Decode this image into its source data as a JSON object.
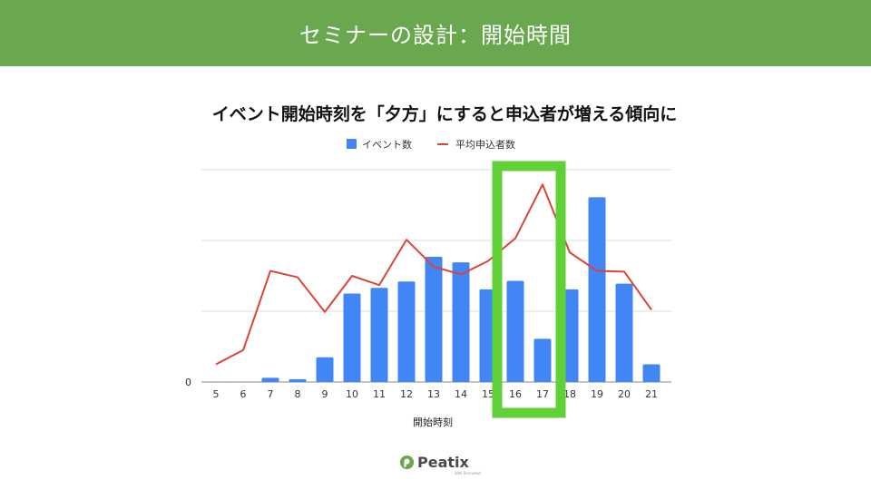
{
  "slide": {
    "title": "セミナーの設計：開始時間",
    "header_color": "#6aa84f"
  },
  "logo": {
    "wordmark": "Peatix",
    "tagline": "Well Recruited",
    "color": "#6aa84f"
  },
  "chart_data": {
    "type": "bar+line",
    "title": "イベント開始時刻を「夕方」にすると申込者が増える傾向に",
    "xlabel": "開始時刻",
    "categories": [
      "5",
      "6",
      "7",
      "8",
      "9",
      "10",
      "11",
      "12",
      "13",
      "14",
      "15",
      "16",
      "17",
      "18",
      "19",
      "20",
      "21"
    ],
    "y_tick_labels": [
      "0"
    ],
    "ylim": [
      0,
      300
    ],
    "grid": true,
    "legend_position": "top",
    "series": [
      {
        "name": "イベント数",
        "type": "bar",
        "color": "#4285f4",
        "values": [
          0,
          0,
          6,
          4,
          35,
          125,
          133,
          142,
          177,
          169,
          131,
          143,
          61,
          131,
          261,
          139,
          25
        ]
      },
      {
        "name": "平均申込者数",
        "type": "line",
        "color": "#db4437",
        "values": [
          25,
          45,
          157,
          148,
          99,
          150,
          137,
          201,
          163,
          152,
          171,
          203,
          279,
          183,
          157,
          156,
          102
        ]
      }
    ],
    "highlight": {
      "categories": [
        "16",
        "17"
      ],
      "color": "#5fd137"
    }
  }
}
